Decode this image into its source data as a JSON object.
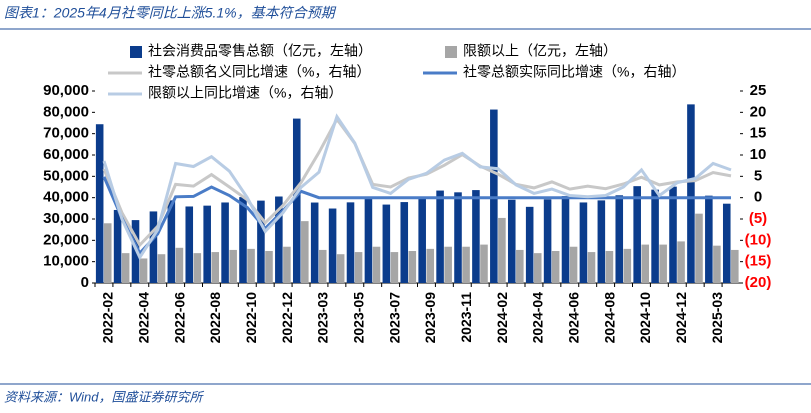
{
  "chart_data": {
    "type": "combo",
    "title": "图表1：2025年4月社零同比上涨5.1%，基本符合预期",
    "source": "资料来源：Wind，国盛证券研究所",
    "categories": [
      "2022-02",
      null,
      "2022-04",
      null,
      "2022-06",
      null,
      "2022-08",
      null,
      "2022-10",
      null,
      "2022-12",
      null,
      "2023-03",
      null,
      "2023-05",
      null,
      "2023-07",
      null,
      "2023-09",
      null,
      "2023-11",
      null,
      "2024-02",
      null,
      "2024-04",
      null,
      "2024-06",
      null,
      "2024-08",
      null,
      "2024-10",
      null,
      "2024-12",
      null,
      "2025-03",
      null
    ],
    "series": [
      {
        "name": "社会消费品零售总额（亿元，左轴）",
        "type": "bar",
        "color": "#0b3c8c",
        "values": [
          74426,
          34233,
          29483,
          33547,
          38742,
          35870,
          36258,
          37745,
          40271,
          38615,
          40542,
          77067,
          37715,
          34910,
          37803,
          39951,
          36761,
          37933,
          39826,
          43333,
          42505,
          43550,
          81307,
          39020,
          35699,
          39211,
          40732,
          37757,
          38726,
          41112,
          45396,
          43763,
          45172,
          83731,
          40940,
          37174
        ]
      },
      {
        "name": "限额以上（亿元，左轴）",
        "type": "bar",
        "color": "#a6a6a6",
        "values": [
          28000,
          14000,
          11500,
          13500,
          16500,
          14000,
          14500,
          15500,
          16000,
          15000,
          17000,
          29000,
          15500,
          13500,
          14500,
          17000,
          14500,
          15000,
          16000,
          17000,
          17000,
          18000,
          30500,
          15500,
          14000,
          15000,
          17000,
          14500,
          15000,
          16000,
          18000,
          18000,
          19500,
          32500,
          17500,
          15500
        ]
      },
      {
        "name": "社零总额名义同比增速（%，右轴）",
        "type": "line",
        "axis": "y2",
        "color": "#c8c8c8",
        "values": [
          6.7,
          -3.5,
          -11.1,
          -6.7,
          3.1,
          2.7,
          5.4,
          2.5,
          -0.5,
          -5.9,
          -1.8,
          3.5,
          10.6,
          18.4,
          12.7,
          3.1,
          2.5,
          4.6,
          5.5,
          7.6,
          10.1,
          7.4,
          5.5,
          3.1,
          2.3,
          3.7,
          2.0,
          2.7,
          2.1,
          3.2,
          4.8,
          3.0,
          3.7,
          4.0,
          5.9,
          5.1
        ]
      },
      {
        "name": "社零总额实际同比增速（%，右轴）",
        "type": "line",
        "axis": "y2",
        "color": "#4a7cc7",
        "values": [
          4.9,
          -4.8,
          -13,
          -8.5,
          0.2,
          0.3,
          2.5,
          0.5,
          -2.3,
          -7.2,
          -3.0,
          1.5,
          0,
          0,
          0,
          0,
          0,
          0,
          0,
          0,
          0,
          0,
          0,
          0,
          0,
          0,
          0,
          0,
          0,
          0,
          0,
          0,
          0,
          0,
          0,
          0
        ]
      },
      {
        "name": "限额以上同比增速（%，右轴）",
        "type": "line",
        "axis": "y2",
        "color": "#b8cce4",
        "values": [
          8.6,
          -5,
          -14,
          -7.5,
          8.0,
          7.3,
          9.6,
          6.2,
          0,
          -7.9,
          -3.5,
          2.4,
          6.0,
          19.0,
          12.8,
          2.4,
          1.0,
          4.3,
          5.7,
          8.8,
          10.4,
          7.2,
          6.8,
          3.0,
          1.0,
          2.0,
          0.5,
          0.2,
          0.5,
          2.5,
          6.5,
          0.5,
          3.5,
          4.5,
          8.0,
          6.5
        ]
      }
    ],
    "ylim": [
      0,
      90000
    ],
    "yticks": [
      {
        "value": 0,
        "label": "0"
      },
      {
        "value": 10000,
        "label": "10,000"
      },
      {
        "value": 20000,
        "label": "20,000"
      },
      {
        "value": 30000,
        "label": "30,000"
      },
      {
        "value": 40000,
        "label": "40,000"
      },
      {
        "value": 50000,
        "label": "50,000"
      },
      {
        "value": 60000,
        "label": "60,000"
      },
      {
        "value": 70000,
        "label": "70,000"
      },
      {
        "value": 80000,
        "label": "80,000"
      },
      {
        "value": 90000,
        "label": "90,000"
      }
    ],
    "y2lim": [
      -20,
      25
    ],
    "y2ticks": [
      {
        "value": -20,
        "label": "(20)"
      },
      {
        "value": -15,
        "label": "(15)"
      },
      {
        "value": -10,
        "label": "(10)"
      },
      {
        "value": -5,
        "label": "(5)"
      },
      0,
      5,
      10,
      15,
      20,
      25
    ],
    "y2_negative_color": "#ff0000",
    "grid": false
  }
}
